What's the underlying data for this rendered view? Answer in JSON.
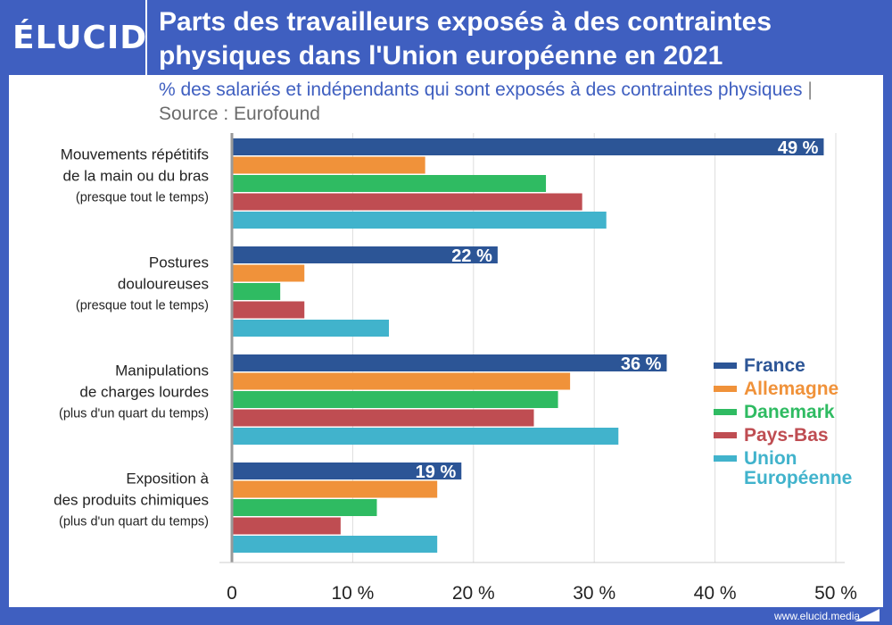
{
  "brand": {
    "logo_text": "ÉLUCID",
    "url": "www.elucid.media"
  },
  "header": {
    "title": "Parts des travailleurs exposés à des contraintes physiques dans l'Union européenne en 2021"
  },
  "subtitle": {
    "text": "% des salariés et indépendants qui sont exposés à des contraintes physiques",
    "separator": "|",
    "source": "Source : Eurofound"
  },
  "colors": {
    "background": "#3f5fc0",
    "France": "#2c5596",
    "Allemagne": "#f0923a",
    "Danemark": "#2fbb62",
    "Pays-Bas": "#bf4d52",
    "Union Européenne": "#41b3cc",
    "grid": "#dddddd"
  },
  "chart_data": {
    "type": "bar",
    "orientation": "horizontal",
    "categories": [
      {
        "lines": [
          "Mouvements répétitifs",
          "de la main ou du bras"
        ],
        "note": "(presque tout le temps)"
      },
      {
        "lines": [
          "Postures",
          "douloureuses"
        ],
        "note": "(presque tout le temps)"
      },
      {
        "lines": [
          "Manipulations",
          "de charges lourdes"
        ],
        "note": "(plus d'un quart du temps)"
      },
      {
        "lines": [
          "Exposition à",
          "des produits chimiques"
        ],
        "note": "(plus d'un quart du temps)"
      }
    ],
    "series": [
      {
        "name": "France",
        "values": [
          49,
          22,
          36,
          19
        ],
        "data_labels": [
          "49 %",
          "22 %",
          "36 %",
          "19 %"
        ]
      },
      {
        "name": "Allemagne",
        "values": [
          16,
          6,
          28,
          17
        ]
      },
      {
        "name": "Danemark",
        "values": [
          26,
          4,
          27,
          12
        ]
      },
      {
        "name": "Pays-Bas",
        "values": [
          29,
          6,
          25,
          9
        ]
      },
      {
        "name": "Union Européenne",
        "values": [
          31,
          13,
          32,
          17
        ]
      }
    ],
    "xlim": [
      0,
      50
    ],
    "x_ticks": [
      0,
      10,
      20,
      30,
      40,
      50
    ],
    "x_tick_labels": [
      "0",
      "10 %",
      "20 %",
      "30 %",
      "40 %",
      "50 %"
    ],
    "grid": true,
    "legend": {
      "placement": "right",
      "entries": [
        {
          "series": "France",
          "lines": [
            "France"
          ]
        },
        {
          "series": "Allemagne",
          "lines": [
            "Allemagne"
          ]
        },
        {
          "series": "Danemark",
          "lines": [
            "Danemark"
          ]
        },
        {
          "series": "Pays-Bas",
          "lines": [
            "Pays-Bas"
          ]
        },
        {
          "series": "Union Européenne",
          "lines": [
            "Union",
            "Européenne"
          ]
        }
      ]
    }
  }
}
